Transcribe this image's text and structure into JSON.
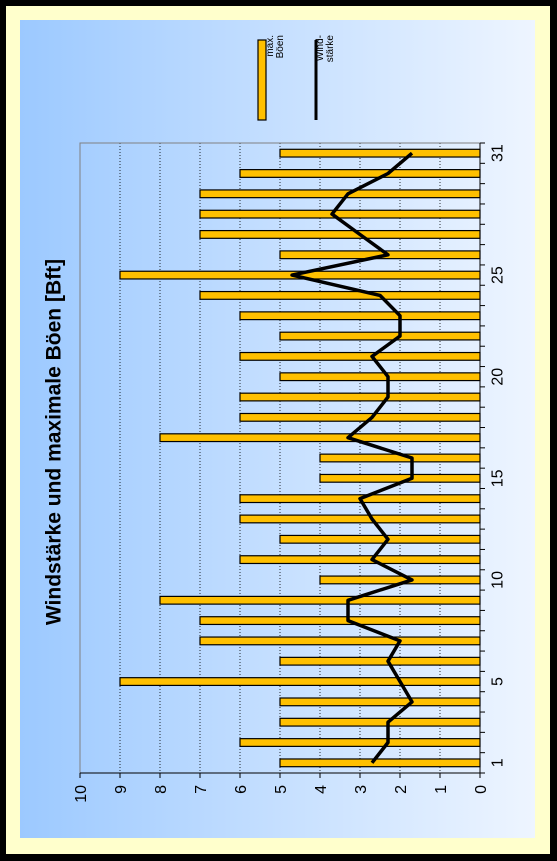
{
  "chart_data": {
    "type": "bar",
    "title": "Windstärke und maximale Böen [Bft]",
    "xlabel": "",
    "ylabel": "",
    "ylim": [
      0,
      10
    ],
    "yticks": [
      "0",
      "1",
      "2",
      "3",
      "4",
      "5",
      "6",
      "7",
      "8",
      "9",
      "10"
    ],
    "x": [
      1,
      2,
      3,
      4,
      5,
      6,
      7,
      8,
      9,
      10,
      11,
      12,
      13,
      14,
      15,
      16,
      17,
      18,
      19,
      20,
      21,
      22,
      23,
      24,
      25,
      26,
      27,
      28,
      29,
      30,
      31
    ],
    "xticks": [
      "1",
      "5",
      "10",
      "15",
      "20",
      "25",
      "31"
    ],
    "grid": true,
    "legend_position": "top-right",
    "series": [
      {
        "name": "max. Böen",
        "type": "bar",
        "values": [
          5,
          6,
          5,
          5,
          9,
          5,
          7,
          7,
          8,
          4,
          6,
          5,
          6,
          6,
          4,
          4,
          8,
          6,
          6,
          5,
          6,
          5,
          6,
          7,
          9,
          5,
          7,
          7,
          7,
          6,
          5
        ]
      },
      {
        "name": "Wind-stärke",
        "type": "line",
        "values": [
          2.7,
          2.3,
          2.3,
          1.7,
          2.0,
          2.3,
          2.0,
          3.3,
          3.3,
          1.7,
          2.7,
          2.3,
          2.7,
          3.0,
          1.7,
          1.7,
          3.3,
          2.7,
          2.3,
          2.3,
          2.7,
          2.0,
          2.0,
          2.5,
          4.7,
          2.3,
          3.0,
          3.7,
          3.3,
          2.3,
          1.7
        ]
      }
    ],
    "legend": {
      "bar_label_lines": [
        "max.",
        "Böen"
      ],
      "line_label_lines": [
        "Wind-",
        "stärke"
      ]
    },
    "colors": {
      "bar_fill": "#ffc000",
      "bar_stroke": "#000000",
      "line": "#000000",
      "frame_background": "#ffffcc",
      "panel_light": "#e8f1ff",
      "panel_dark": "#9cc9ff"
    }
  }
}
